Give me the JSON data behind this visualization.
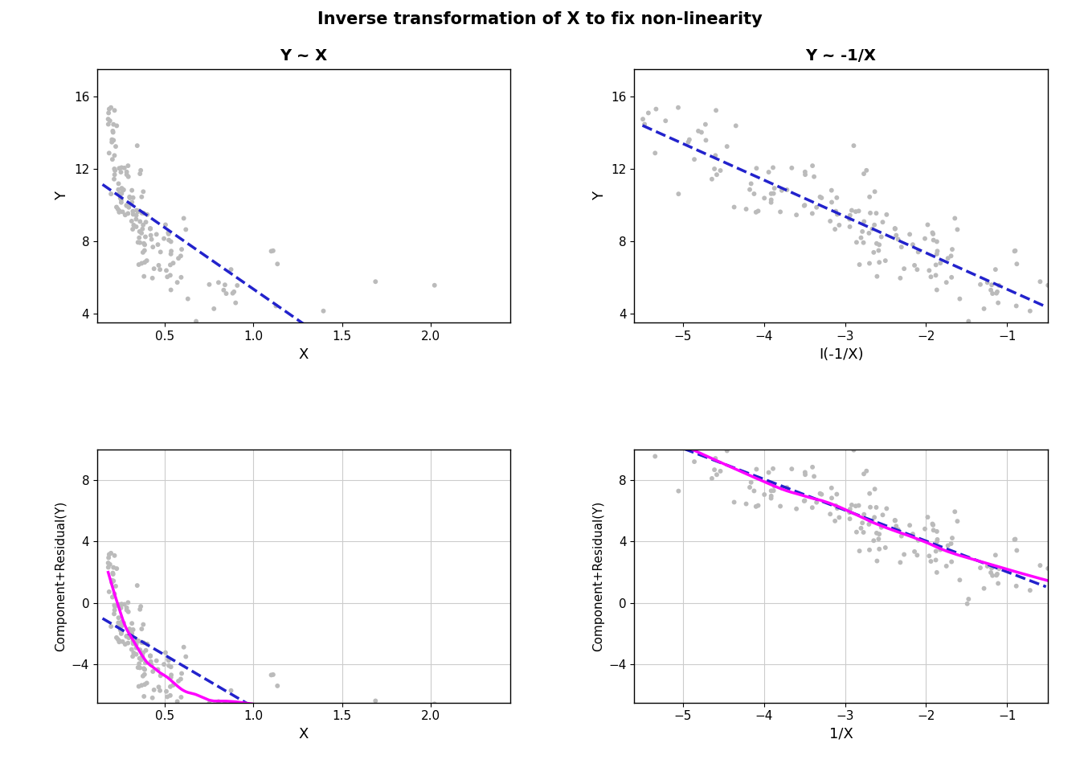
{
  "title": "Inverse transformation of X to fix non-linearity",
  "plot1_title": "Y ~ X",
  "plot2_title": "Y ~ -1/X",
  "plot1_xlabel": "X",
  "plot1_ylabel": "Y",
  "plot2_xlabel": "I(-1/X)",
  "plot2_ylabel": "Y",
  "plot3_xlabel": "X",
  "plot3_ylabel": "Component+Residual(Y)",
  "plot4_xlabel": "1/X",
  "plot4_ylabel": "Component+Residual(Y)",
  "scatter_color": "#bbbbbb",
  "line_color_blue": "#2222cc",
  "line_color_magenta": "#ff00ff",
  "background_color": "#ffffff",
  "seed": 42,
  "n_points": 150,
  "ylim1": [
    3.5,
    17.5
  ],
  "ylim2": [
    3.5,
    17.5
  ],
  "ylim3": [
    -6.5,
    10.0
  ],
  "ylim4": [
    -6.5,
    10.0
  ],
  "xlim1": [
    0.12,
    2.45
  ],
  "xlim2": [
    -5.6,
    -0.5
  ],
  "xlim3": [
    0.12,
    2.45
  ],
  "xlim4": [
    -5.6,
    -0.5
  ]
}
